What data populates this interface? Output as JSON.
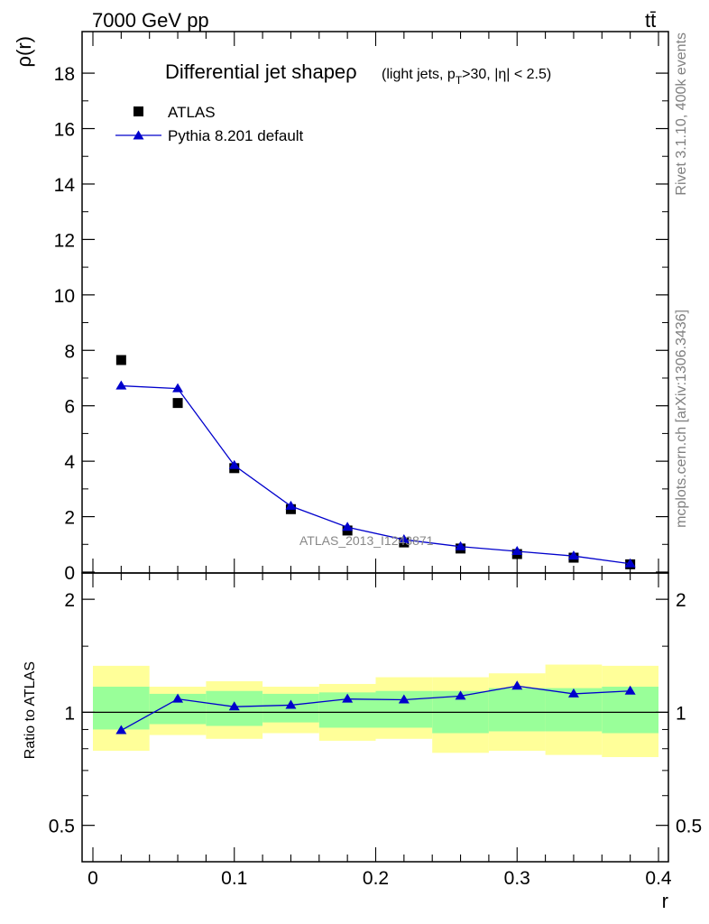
{
  "header": {
    "beam": "7000 GeV pp",
    "process": "tt̄"
  },
  "side_labels": {
    "rivet": "Rivet 3.1.10,  400k events",
    "mcplots": "mcplots.cern.ch [arXiv:1306.3436]"
  },
  "analysis_label": "ATLAS_2013_I1243871",
  "chart_data": [
    {
      "type": "scatter",
      "panel": "main",
      "title": "Differential jet shape",
      "title_symbol": "ρ",
      "title_cuts": "(light jets, p",
      "title_cuts_sub": "T",
      "title_cuts_tail": ">30, |η| < 2.5)",
      "ylabel": "ρ(r)",
      "xlabel": "",
      "xlim": [
        0,
        0.4
      ],
      "ylim": [
        0,
        19.5
      ],
      "yticks": [
        0,
        2,
        4,
        6,
        8,
        10,
        12,
        14,
        16,
        18
      ],
      "ytick_labels": [
        "0",
        "2",
        "4",
        "6",
        "8",
        "10",
        "12",
        "14",
        "16",
        "18"
      ],
      "legend_position": "top-left",
      "series": [
        {
          "name": "ATLAS",
          "marker": "square",
          "color": "#000000",
          "x": [
            0.02,
            0.06,
            0.1,
            0.14,
            0.18,
            0.22,
            0.26,
            0.3,
            0.34,
            0.38
          ],
          "values": [
            7.65,
            6.1,
            3.75,
            2.27,
            1.5,
            1.07,
            0.85,
            0.65,
            0.52,
            0.28
          ]
        },
        {
          "name": "Pythia 8.201 default",
          "marker": "triangle",
          "color": "#0000cc",
          "x": [
            0.02,
            0.06,
            0.1,
            0.14,
            0.18,
            0.22,
            0.26,
            0.3,
            0.34,
            0.38
          ],
          "values": [
            6.72,
            6.62,
            3.85,
            2.38,
            1.62,
            1.17,
            0.92,
            0.75,
            0.58,
            0.3
          ]
        }
      ]
    },
    {
      "type": "line",
      "panel": "ratio",
      "ylabel": "Ratio to ATLAS",
      "xlabel": "r",
      "xlim": [
        0,
        0.4
      ],
      "ylim": [
        0.4,
        2.35
      ],
      "yscale": "log",
      "xticks": [
        0,
        0.1,
        0.2,
        0.3,
        0.4
      ],
      "xtick_labels": [
        "0",
        "0.1",
        "0.2",
        "0.3",
        "0.4"
      ],
      "yticks": [
        0.5,
        1,
        2
      ],
      "ytick_labels": [
        "0.5",
        "1",
        "2"
      ],
      "bin_edges": [
        0,
        0.04,
        0.08,
        0.12,
        0.16,
        0.2,
        0.24,
        0.28,
        0.32,
        0.36,
        0.4
      ],
      "band_inner": {
        "color": "#99ff99",
        "low": [
          0.9,
          0.93,
          0.92,
          0.94,
          0.91,
          0.91,
          0.88,
          0.89,
          0.89,
          0.88
        ],
        "high": [
          1.17,
          1.12,
          1.14,
          1.12,
          1.13,
          1.14,
          1.14,
          1.16,
          1.16,
          1.17
        ]
      },
      "band_outer": {
        "color": "#ffff99",
        "low": [
          0.79,
          0.87,
          0.85,
          0.88,
          0.84,
          0.85,
          0.78,
          0.79,
          0.77,
          0.76
        ],
        "high": [
          1.33,
          1.17,
          1.21,
          1.17,
          1.19,
          1.24,
          1.24,
          1.27,
          1.34,
          1.33
        ]
      },
      "reference": 1,
      "series": [
        {
          "name": "Pythia 8.201 default",
          "marker": "triangle",
          "color": "#0000cc",
          "x": [
            0.02,
            0.06,
            0.1,
            0.14,
            0.18,
            0.22,
            0.26,
            0.3,
            0.34,
            0.38
          ],
          "values": [
            0.895,
            1.085,
            1.035,
            1.045,
            1.085,
            1.08,
            1.105,
            1.175,
            1.12,
            1.14
          ]
        }
      ]
    }
  ]
}
